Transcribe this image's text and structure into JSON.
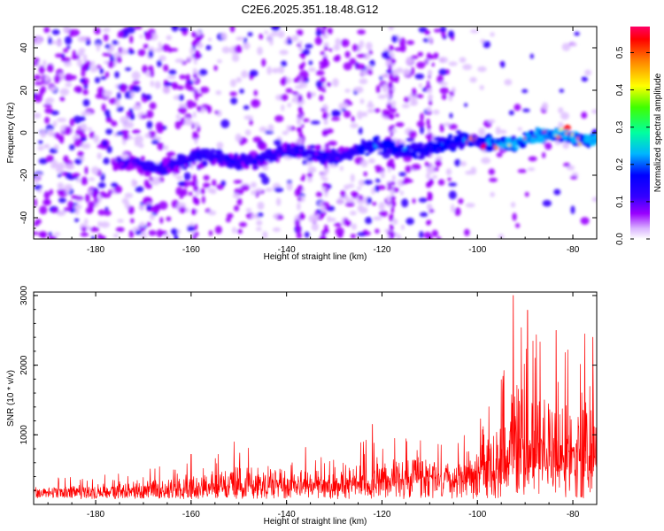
{
  "title": "C2E6.2025.351.18.48.G12",
  "chart_data": [
    {
      "type": "heatmap",
      "title": "C2E6.2025.351.18.48.G12",
      "xlabel": "Height of straight line (km)",
      "ylabel": "Frequency (Hz)",
      "xlim": [
        -193,
        -75
      ],
      "ylim": [
        -50,
        50
      ],
      "xticks": [
        -180,
        -160,
        -140,
        -120,
        -100,
        -80
      ],
      "yticks": [
        -40,
        -20,
        0,
        20,
        40
      ],
      "ridge": {
        "x_start": -176,
        "x_end": -75,
        "freq_start": -16,
        "freq_end": -1
      },
      "colorbar": {
        "label": "Normalized spectral amplitude",
        "range": [
          0.0,
          0.57
        ],
        "ticks": [
          0.0,
          0.1,
          0.2,
          0.3,
          0.4,
          0.5
        ],
        "colors": [
          "#ffffff",
          "#d9b3ff",
          "#8800ff",
          "#3300ff",
          "#0000ff",
          "#00b4ff",
          "#00ff80",
          "#80ff00",
          "#ffff00",
          "#ff8000",
          "#ff0000",
          "#ff0055"
        ]
      }
    },
    {
      "type": "line",
      "xlabel": "Height of straight line (km)",
      "ylabel": "SNR (10 * v/v)",
      "xlim": [
        -193,
        -75
      ],
      "ylim": [
        0,
        3050
      ],
      "xticks": [
        -180,
        -160,
        -140,
        -120,
        -100,
        -80
      ],
      "yticks": [
        1000,
        2000,
        3000
      ],
      "color": "#ff0000",
      "envelope": [
        {
          "x": -193,
          "base": 150,
          "peak": 350
        },
        {
          "x": -160,
          "base": 200,
          "peak": 600
        },
        {
          "x": -150,
          "base": 300,
          "peak": 850
        },
        {
          "x": -130,
          "base": 300,
          "peak": 700
        },
        {
          "x": -120,
          "base": 350,
          "peak": 1100
        },
        {
          "x": -105,
          "base": 400,
          "peak": 850
        },
        {
          "x": -100,
          "base": 500,
          "peak": 1200
        },
        {
          "x": -95,
          "base": 700,
          "peak": 1800
        },
        {
          "x": -92,
          "base": 900,
          "peak": 3000
        },
        {
          "x": -85,
          "base": 800,
          "peak": 2300
        },
        {
          "x": -80,
          "base": 800,
          "peak": 2400
        },
        {
          "x": -75,
          "base": 800,
          "peak": 2400
        }
      ],
      "highlights": [
        {
          "x": -92.5,
          "y": 3000
        },
        {
          "x": -89.5,
          "y": 2790
        },
        {
          "x": -83.5,
          "y": 2500
        },
        {
          "x": -77.5,
          "y": 2450
        },
        {
          "x": -75.8,
          "y": 2400
        },
        {
          "x": -94.5,
          "y": 1700
        },
        {
          "x": -122,
          "y": 1150
        },
        {
          "x": -151,
          "y": 900
        },
        {
          "x": -136,
          "y": 820
        },
        {
          "x": -160,
          "y": 720
        }
      ]
    }
  ]
}
